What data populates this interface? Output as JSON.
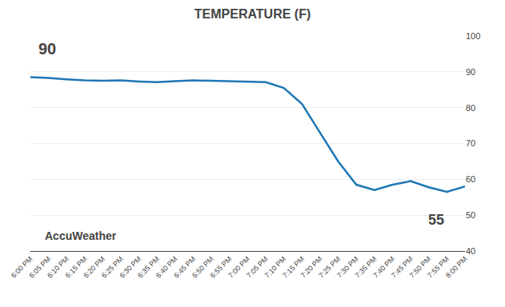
{
  "chart_data": {
    "type": "line",
    "title": "TEMPERATURE (F)",
    "categories": [
      "6:00 PM",
      "6:05 PM",
      "6:10 PM",
      "6:15 PM",
      "6:20 PM",
      "6:25 PM",
      "6:30 PM",
      "6:35 PM",
      "6:40 PM",
      "6:45 PM",
      "6:50 PM",
      "6:55 PM",
      "7:00 PM",
      "7:05 PM",
      "7:10 PM",
      "7:15 PM",
      "7:20 PM",
      "7:25 PM",
      "7:30 PM",
      "7:35 PM",
      "7:40 PM",
      "7:45 PM",
      "7:50 PM",
      "7:55 PM",
      "8:00 PM"
    ],
    "values": [
      88.5,
      88.3,
      87.9,
      87.6,
      87.5,
      87.6,
      87.3,
      87.1,
      87.4,
      87.6,
      87.5,
      87.4,
      87.3,
      87.1,
      85.5,
      81.0,
      73.0,
      65.0,
      58.5,
      57.0,
      58.5,
      59.5,
      57.8,
      56.5,
      58.0
    ],
    "ylim": [
      40,
      100
    ],
    "yticks": [
      40,
      50,
      60,
      70,
      80,
      90,
      100
    ],
    "grid": true,
    "annotations": [
      "90",
      "55",
      "AccuWeather"
    ]
  }
}
